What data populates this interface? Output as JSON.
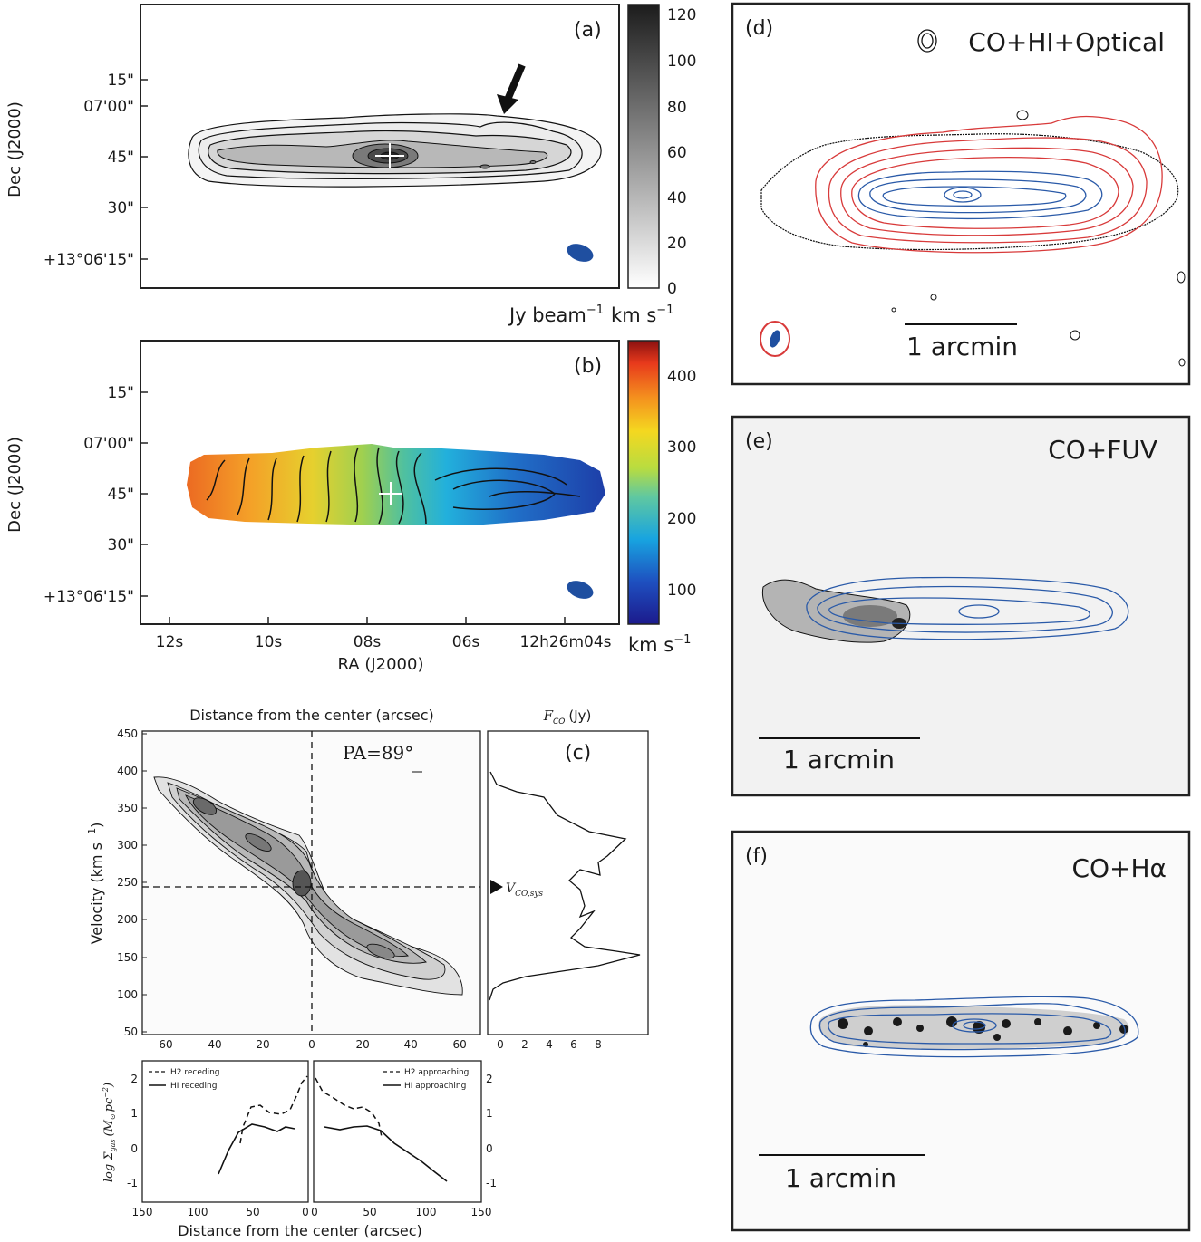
{
  "panel_a": {
    "tag": "(a)",
    "dec_ticks": [
      "15\"",
      "07'00\"",
      "45\"",
      "30\"",
      "+13°06'15\""
    ],
    "ylabel": "Dec (J2000)",
    "colorbar_ticks": [
      "120",
      "100",
      "80",
      "60",
      "40",
      "20",
      "0"
    ],
    "colorbar_unit_main": "Jy beam",
    "colorbar_unit_sup": "−1",
    "colorbar_unit_tail": "km s",
    "colorbar_unit_tail_sup": "−1"
  },
  "panel_b": {
    "tag": "(b)",
    "dec_ticks": [
      "15\"",
      "07'00\"",
      "45\"",
      "30\"",
      "+13°06'15\""
    ],
    "ylabel": "Dec (J2000)",
    "ra_ticks": [
      "12s",
      "10s",
      "08s",
      "06s",
      "12h26m04s"
    ],
    "xlabel": "RA (J2000)",
    "colorbar_ticks": [
      "400",
      "300",
      "200",
      "100"
    ],
    "colorbar_unit": "km s",
    "colorbar_unit_sup": "−1"
  },
  "panel_c": {
    "tag": "(c)",
    "top_title": "Distance from the center (arcsec)",
    "pa_label": "PA=89°",
    "ylabel": "Velocity (km s",
    "ylabel_sup": "−1",
    "ylabel_end": ")",
    "velocity_ticks": [
      "450",
      "400",
      "350",
      "300",
      "250",
      "200",
      "150",
      "100",
      "50"
    ],
    "distance_ticks": [
      "60",
      "40",
      "20",
      "0",
      "-20",
      "-40",
      "-60"
    ],
    "flux_title": "F",
    "flux_title_sub": "CO",
    "flux_title_unit": "(Jy)",
    "flux_ticks": [
      "0",
      "2",
      "4",
      "6",
      "8"
    ],
    "vsys_label": "V",
    "vsys_sub": "CO,sys"
  },
  "panel_profiles": {
    "ylabel": "log Σ",
    "ylabel_sub": "gas",
    "ylabel_unit": "(M",
    "ylabel_unit_sub": "⊙",
    "ylabel_unit_end": "pc",
    "ylabel_unit_sup": "−2",
    "ylabel_close": ")",
    "y_ticks": [
      "2",
      "1",
      "0",
      "-1"
    ],
    "left_x_ticks": [
      "150",
      "100",
      "50",
      "0"
    ],
    "right_x_ticks": [
      "0",
      "50",
      "100",
      "150"
    ],
    "xlabel": "Distance from the center (arcsec)",
    "legend_left": [
      "H2 receding",
      "HI receding"
    ],
    "legend_right": [
      "H2 approaching",
      "HI approaching"
    ]
  },
  "panel_d": {
    "tag": "(d)",
    "title": "CO+HI+Optical",
    "scale": "1 arcmin"
  },
  "panel_e": {
    "tag": "(e)",
    "title": "CO+FUV",
    "scale": "1 arcmin"
  },
  "panel_f": {
    "tag": "(f)",
    "title": "CO+Hα",
    "scale": "1 arcmin"
  },
  "colors": {
    "co_contour": "#2a5aa8",
    "hi_contour": "#d83a3a",
    "beam": "#1f4fa0"
  }
}
